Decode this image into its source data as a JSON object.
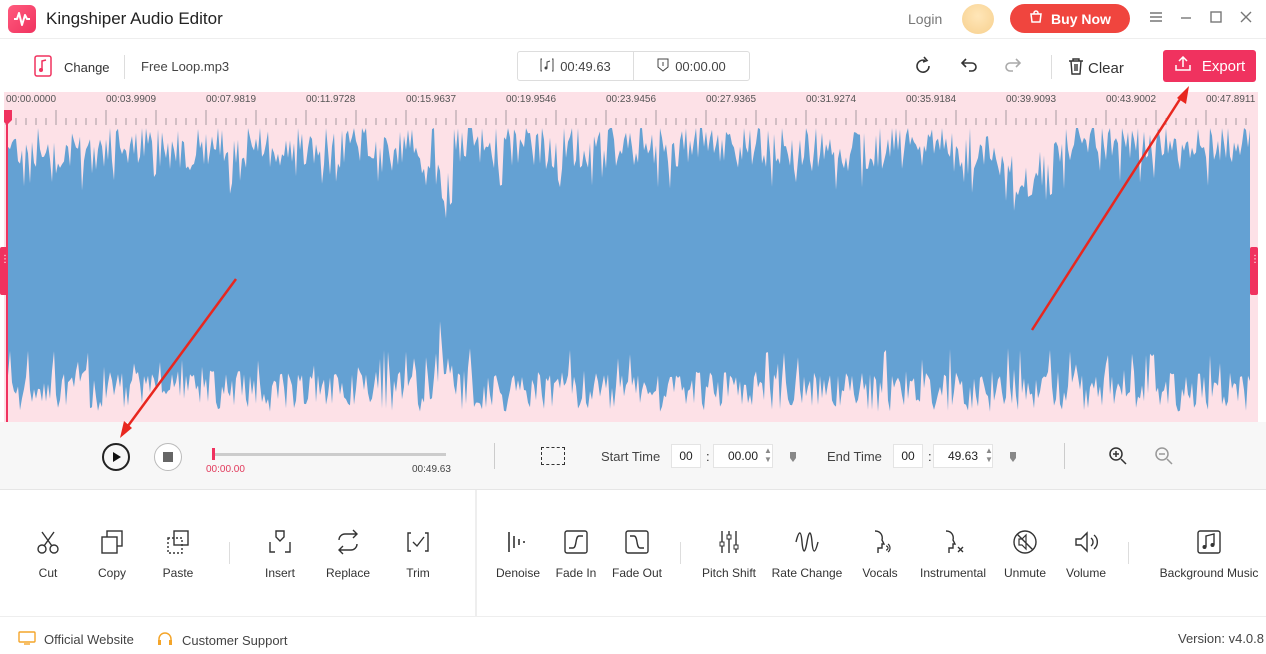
{
  "app": {
    "title": "Kingshiper Audio Editor",
    "login": "Login",
    "buy_now": "Buy Now",
    "accent": "#f0325f",
    "buy_color": "#f0453e"
  },
  "toolbar": {
    "change_label": "Change",
    "file_name": "Free Loop.mp3",
    "duration": "00:49.63",
    "position": "00:00.00",
    "clear_label": "Clear",
    "export_label": "Export"
  },
  "timeline": {
    "labels": [
      "00:00.0000",
      "00:03.9909",
      "00:07.9819",
      "00:11.9728",
      "00:15.9637",
      "00:19.9546",
      "00:23.9456",
      "00:27.9365",
      "00:31.9274",
      "00:35.9184",
      "00:39.9093",
      "00:43.9002",
      "00:47.8911"
    ],
    "wave_color": "#64a1d3",
    "selection_color": "#fde1e7"
  },
  "playback": {
    "current": "00:00.00",
    "total": "00:49.63",
    "start_label": "Start Time",
    "start_min": "00",
    "start_sec": "00.00",
    "end_label": "End Time",
    "end_min": "00",
    "end_sec": "49.63"
  },
  "tools_left": [
    {
      "label": "Cut",
      "icon": "scissors-icon"
    },
    {
      "label": "Copy",
      "icon": "copy-icon"
    },
    {
      "label": "Paste",
      "icon": "paste-icon"
    },
    {
      "label": "Insert",
      "icon": "insert-icon"
    },
    {
      "label": "Replace",
      "icon": "replace-icon"
    },
    {
      "label": "Trim",
      "icon": "trim-icon"
    }
  ],
  "tools_right": [
    {
      "label": "Denoise",
      "icon": "denoise-icon"
    },
    {
      "label": "Fade In",
      "icon": "fade-in-icon"
    },
    {
      "label": "Fade Out",
      "icon": "fade-out-icon"
    },
    {
      "label": "Pitch Shift",
      "icon": "pitch-shift-icon"
    },
    {
      "label": "Rate Change",
      "icon": "rate-change-icon"
    },
    {
      "label": "Vocals",
      "icon": "vocals-icon"
    },
    {
      "label": "Instrumental",
      "icon": "instrumental-icon"
    },
    {
      "label": "Unmute",
      "icon": "unmute-icon"
    },
    {
      "label": "Volume",
      "icon": "volume-icon"
    },
    {
      "label": "Background Music",
      "icon": "background-music-icon"
    }
  ],
  "footer": {
    "website": "Official Website",
    "support": "Customer Support",
    "version": "Version: v4.0.8"
  }
}
